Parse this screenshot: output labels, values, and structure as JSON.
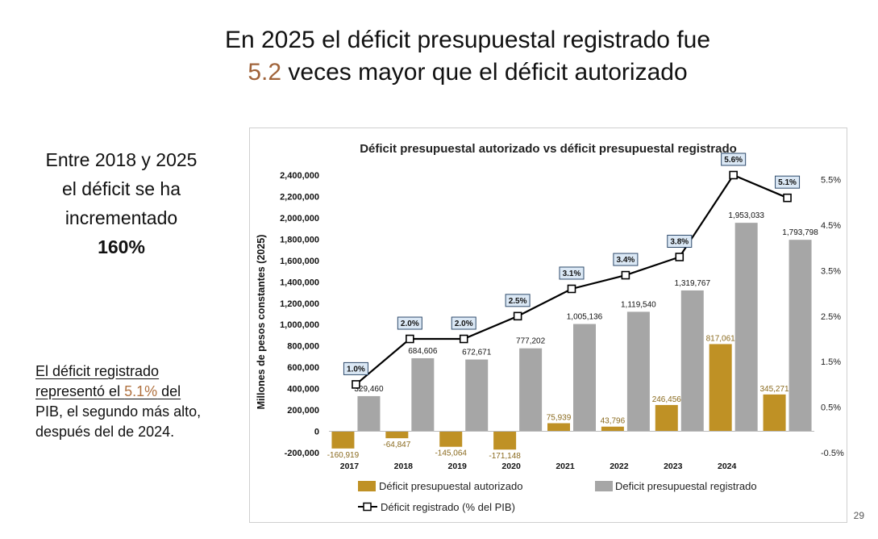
{
  "slide": {
    "title_line1": "En 2025 el déficit presupuestal registrado fue",
    "title_highlight": "5.2",
    "title_line2_rest": " veces mayor que el déficit autorizado",
    "side_note_lines": [
      "Entre 2018 y 2025",
      "el déficit se ha",
      "incrementado"
    ],
    "side_note_pct": "160%",
    "bottom_note_part1": "El déficit registrado",
    "bottom_note_part2": "representó el ",
    "bottom_note_highlight": "5.1%",
    "bottom_note_part3": " del",
    "bottom_note_part4": "PIB, el segundo más alto,",
    "bottom_note_part5": "después del de 2024.",
    "page_number": "29"
  },
  "colors": {
    "accent": "#a0633a",
    "authorized": "#bf9125",
    "registered": "#a6a6a6",
    "line": "#000000",
    "label_authorized": "#8a6a1e"
  },
  "chart_data": {
    "type": "bar",
    "title": "Déficit presupuestal autorizado vs déficit presupuestal registrado",
    "ylabel": "Millones de pesos constantes (2025)",
    "ylim": [
      -200000,
      2400000
    ],
    "yticks": [
      "2,400,000",
      "2,200,000",
      "2,000,000",
      "1,800,000",
      "1,600,000",
      "1,400,000",
      "1,200,000",
      "1,000,000",
      "800,000",
      "600,000",
      "400,000",
      "200,000",
      "0",
      "-200,000"
    ],
    "ytick_values": [
      2400000,
      2200000,
      2000000,
      1800000,
      1600000,
      1400000,
      1200000,
      1000000,
      800000,
      600000,
      400000,
      200000,
      0,
      -200000
    ],
    "y2lim": [
      -0.5,
      5.6
    ],
    "y2ticks": [
      "5.5%",
      "4.5%",
      "3.5%",
      "2.5%",
      "1.5%",
      "0.5%",
      "-0.5%"
    ],
    "y2tick_values": [
      5.5,
      4.5,
      3.5,
      2.5,
      1.5,
      0.5,
      -0.5
    ],
    "categories": [
      "2017",
      "2018",
      "2019",
      "2020",
      "2021",
      "2022",
      "2023",
      "2024",
      ""
    ],
    "series": [
      {
        "name": "Déficit presupuestal autorizado",
        "values": [
          -160919,
          -64847,
          -145064,
          -171148,
          75939,
          43796,
          246456,
          817061,
          345271
        ],
        "labels": [
          "-160,919",
          "-64,847",
          "-145,064",
          "-171,148",
          "75,939",
          "43,796",
          "246,456",
          "817,061",
          "345,271"
        ]
      },
      {
        "name": "Deficit presupuestal registrado",
        "values": [
          329460,
          684606,
          672671,
          777202,
          1005136,
          1119540,
          1319767,
          1953033,
          1793798
        ],
        "labels": [
          "329,460",
          "684,606",
          "672,671",
          "777,202",
          "1,005,136",
          "1,119,540",
          "1,319,767",
          "1,953,033",
          "1,793,798"
        ]
      },
      {
        "name": "Déficit registrado (% del PIB)",
        "axis": "secondary",
        "values": [
          1.0,
          2.0,
          2.0,
          2.5,
          3.1,
          3.4,
          3.8,
          5.6,
          5.1
        ],
        "labels": [
          "1.0%",
          "2.0%",
          "2.0%",
          "2.5%",
          "3.1%",
          "3.4%",
          "3.8%",
          "5.6%",
          "5.1%"
        ]
      }
    ],
    "legend_position": "bottom",
    "grid": false
  }
}
